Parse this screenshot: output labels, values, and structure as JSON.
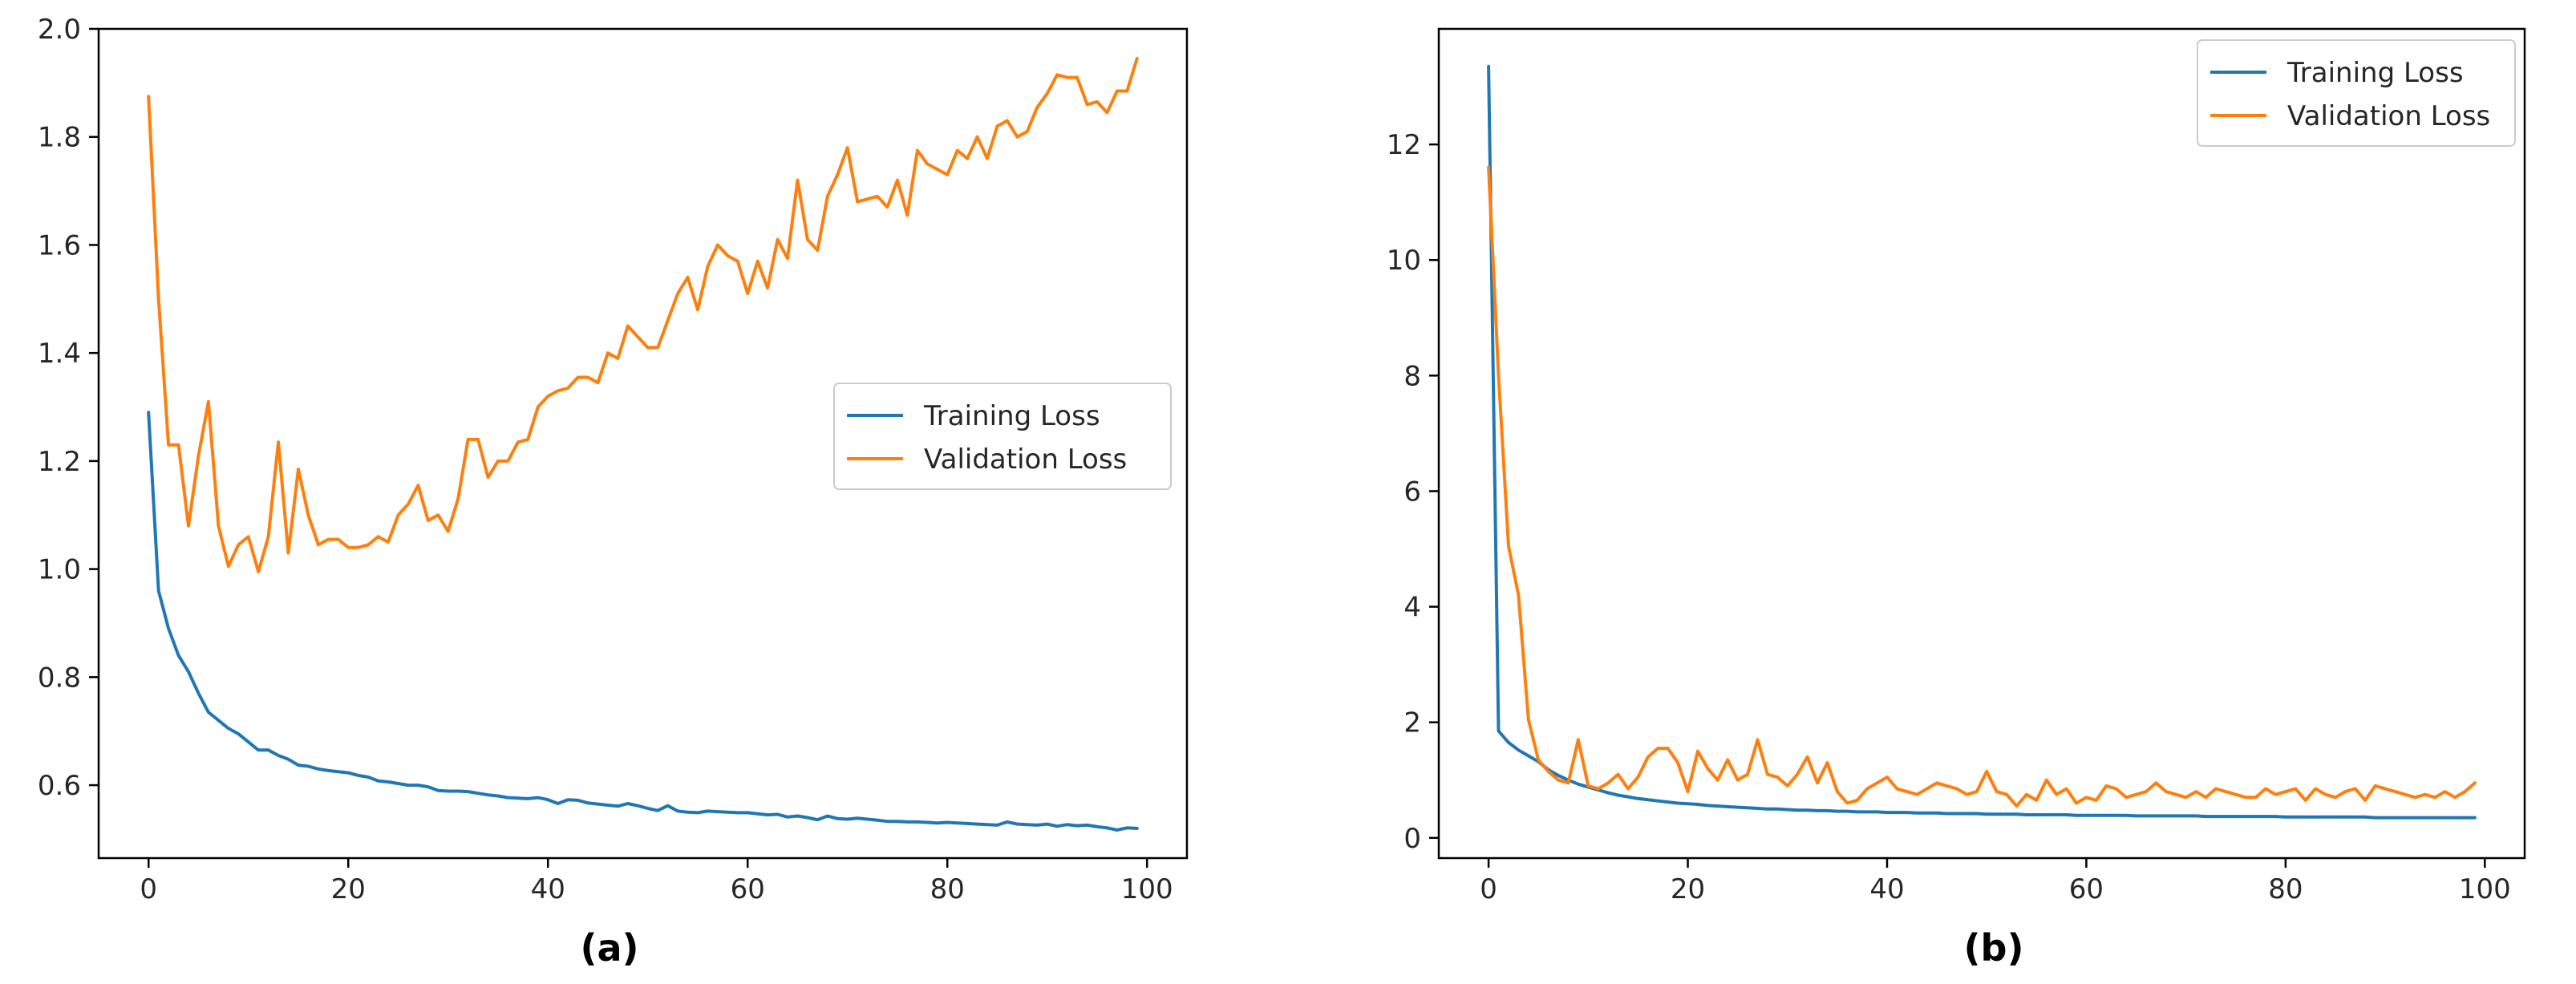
{
  "chart_data": [
    {
      "type": "line",
      "panel_label": "(a)",
      "title": "",
      "xlabel": "",
      "ylabel": "",
      "xlim": [
        -5,
        104
      ],
      "ylim": [
        0.465,
        2.0
      ],
      "xticks": [
        0,
        20,
        40,
        60,
        80,
        100
      ],
      "yticks": [
        0.6,
        0.8,
        1.0,
        1.2,
        1.4,
        1.6,
        1.8,
        2.0
      ],
      "tick_format": 1,
      "grid": false,
      "legend_position": "center-right",
      "series": [
        {
          "name": "Training Loss",
          "color": "#1f77b4",
          "x_start": 0,
          "values": [
            1.29,
            0.96,
            0.89,
            0.84,
            0.81,
            0.77,
            0.735,
            0.72,
            0.705,
            0.695,
            0.68,
            0.665,
            0.665,
            0.655,
            0.648,
            0.637,
            0.635,
            0.63,
            0.627,
            0.625,
            0.623,
            0.618,
            0.615,
            0.608,
            0.606,
            0.603,
            0.6,
            0.6,
            0.597,
            0.59,
            0.589,
            0.589,
            0.588,
            0.585,
            0.582,
            0.58,
            0.577,
            0.576,
            0.575,
            0.577,
            0.573,
            0.566,
            0.573,
            0.572,
            0.567,
            0.565,
            0.563,
            0.561,
            0.566,
            0.562,
            0.557,
            0.553,
            0.562,
            0.552,
            0.55,
            0.549,
            0.552,
            0.551,
            0.55,
            0.549,
            0.549,
            0.547,
            0.545,
            0.546,
            0.541,
            0.543,
            0.54,
            0.536,
            0.543,
            0.538,
            0.537,
            0.539,
            0.537,
            0.535,
            0.533,
            0.533,
            0.532,
            0.532,
            0.531,
            0.53,
            0.531,
            0.53,
            0.529,
            0.528,
            0.527,
            0.526,
            0.532,
            0.528,
            0.527,
            0.526,
            0.528,
            0.524,
            0.527,
            0.525,
            0.526,
            0.523,
            0.521,
            0.517,
            0.521,
            0.52
          ]
        },
        {
          "name": "Validation Loss",
          "color": "#ff7f0e",
          "x_start": 0,
          "values": [
            1.875,
            1.5,
            1.23,
            1.23,
            1.08,
            1.21,
            1.31,
            1.08,
            1.005,
            1.045,
            1.06,
            0.995,
            1.06,
            1.235,
            1.03,
            1.185,
            1.1,
            1.045,
            1.055,
            1.055,
            1.04,
            1.04,
            1.045,
            1.06,
            1.05,
            1.1,
            1.12,
            1.155,
            1.09,
            1.1,
            1.07,
            1.13,
            1.24,
            1.24,
            1.17,
            1.2,
            1.2,
            1.235,
            1.24,
            1.3,
            1.32,
            1.33,
            1.335,
            1.355,
            1.355,
            1.345,
            1.4,
            1.39,
            1.45,
            1.43,
            1.41,
            1.41,
            1.46,
            1.51,
            1.54,
            1.48,
            1.56,
            1.6,
            1.58,
            1.57,
            1.51,
            1.57,
            1.52,
            1.61,
            1.575,
            1.72,
            1.61,
            1.59,
            1.69,
            1.73,
            1.78,
            1.68,
            1.685,
            1.69,
            1.67,
            1.72,
            1.655,
            1.775,
            1.75,
            1.74,
            1.73,
            1.775,
            1.76,
            1.8,
            1.76,
            1.82,
            1.83,
            1.8,
            1.81,
            1.855,
            1.88,
            1.915,
            1.91,
            1.91,
            1.86,
            1.865,
            1.845,
            1.885,
            1.885,
            1.945
          ]
        }
      ]
    },
    {
      "type": "line",
      "panel_label": "(b)",
      "title": "",
      "xlabel": "",
      "ylabel": "",
      "xlim": [
        -5,
        104
      ],
      "ylim": [
        -0.35,
        14.0
      ],
      "xticks": [
        0,
        20,
        40,
        60,
        80,
        100
      ],
      "yticks": [
        0,
        2,
        4,
        6,
        8,
        10,
        12
      ],
      "tick_format": 0,
      "grid": false,
      "legend_position": "top-right",
      "series": [
        {
          "name": "Training Loss",
          "color": "#1f77b4",
          "x_start": 0,
          "values": [
            13.35,
            1.85,
            1.65,
            1.52,
            1.42,
            1.32,
            1.18,
            1.08,
            1.0,
            0.93,
            0.88,
            0.83,
            0.78,
            0.74,
            0.71,
            0.68,
            0.66,
            0.64,
            0.62,
            0.6,
            0.59,
            0.58,
            0.56,
            0.55,
            0.54,
            0.53,
            0.52,
            0.51,
            0.5,
            0.5,
            0.49,
            0.48,
            0.48,
            0.47,
            0.47,
            0.46,
            0.46,
            0.45,
            0.45,
            0.45,
            0.44,
            0.44,
            0.44,
            0.43,
            0.43,
            0.43,
            0.42,
            0.42,
            0.42,
            0.42,
            0.41,
            0.41,
            0.41,
            0.41,
            0.4,
            0.4,
            0.4,
            0.4,
            0.4,
            0.39,
            0.39,
            0.39,
            0.39,
            0.39,
            0.39,
            0.38,
            0.38,
            0.38,
            0.38,
            0.38,
            0.38,
            0.38,
            0.37,
            0.37,
            0.37,
            0.37,
            0.37,
            0.37,
            0.37,
            0.37,
            0.36,
            0.36,
            0.36,
            0.36,
            0.36,
            0.36,
            0.36,
            0.36,
            0.36,
            0.35,
            0.35,
            0.35,
            0.35,
            0.35,
            0.35,
            0.35,
            0.35,
            0.35,
            0.35,
            0.35
          ]
        },
        {
          "name": "Validation Loss",
          "color": "#ff7f0e",
          "x_start": 0,
          "values": [
            11.6,
            8.0,
            5.05,
            4.2,
            2.05,
            1.35,
            1.15,
            1.0,
            0.95,
            1.7,
            0.9,
            0.85,
            0.95,
            1.1,
            0.85,
            1.05,
            1.4,
            1.55,
            1.55,
            1.3,
            0.8,
            1.5,
            1.2,
            1.0,
            1.35,
            1.0,
            1.1,
            1.7,
            1.1,
            1.05,
            0.9,
            1.1,
            1.4,
            0.95,
            1.3,
            0.8,
            0.6,
            0.65,
            0.85,
            0.95,
            1.05,
            0.85,
            0.8,
            0.75,
            0.85,
            0.95,
            0.9,
            0.85,
            0.75,
            0.8,
            1.15,
            0.8,
            0.75,
            0.55,
            0.75,
            0.65,
            1.0,
            0.75,
            0.85,
            0.6,
            0.7,
            0.65,
            0.9,
            0.85,
            0.7,
            0.75,
            0.8,
            0.95,
            0.8,
            0.75,
            0.7,
            0.8,
            0.7,
            0.85,
            0.8,
            0.75,
            0.7,
            0.7,
            0.85,
            0.75,
            0.8,
            0.85,
            0.65,
            0.85,
            0.75,
            0.7,
            0.8,
            0.85,
            0.65,
            0.9,
            0.85,
            0.8,
            0.75,
            0.7,
            0.75,
            0.7,
            0.8,
            0.7,
            0.8,
            0.95
          ]
        }
      ]
    }
  ]
}
